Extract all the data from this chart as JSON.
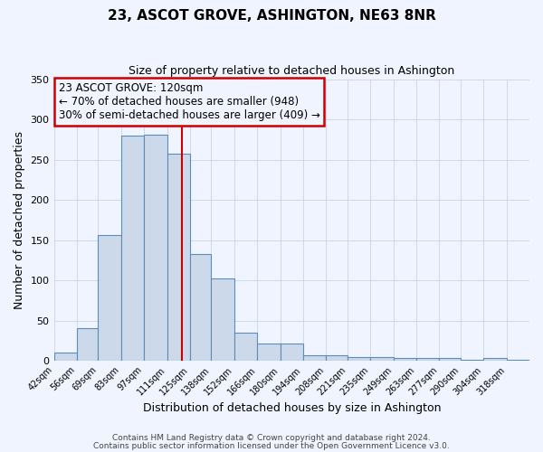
{
  "title": "23, ASCOT GROVE, ASHINGTON, NE63 8NR",
  "subtitle": "Size of property relative to detached houses in Ashington",
  "xlabel": "Distribution of detached houses by size in Ashington",
  "ylabel": "Number of detached properties",
  "bin_labels": [
    "42sqm",
    "56sqm",
    "69sqm",
    "83sqm",
    "97sqm",
    "111sqm",
    "125sqm",
    "138sqm",
    "152sqm",
    "166sqm",
    "180sqm",
    "194sqm",
    "208sqm",
    "221sqm",
    "235sqm",
    "249sqm",
    "263sqm",
    "277sqm",
    "290sqm",
    "304sqm",
    "318sqm"
  ],
  "bar_heights": [
    10,
    41,
    157,
    280,
    281,
    258,
    133,
    103,
    35,
    22,
    22,
    7,
    7,
    5,
    5,
    4,
    4,
    3,
    1,
    3,
    1
  ],
  "bin_edges": [
    42,
    56,
    69,
    83,
    97,
    111,
    125,
    138,
    152,
    166,
    180,
    194,
    208,
    221,
    235,
    249,
    263,
    277,
    290,
    304,
    318,
    332
  ],
  "bar_color": "#ccd9ea",
  "bar_edge_color": "#5b8db8",
  "vline_x": 120,
  "vline_color": "#cc0000",
  "annotation_line1": "23 ASCOT GROVE: 120sqm",
  "annotation_line2": "← 70% of detached houses are smaller (948)",
  "annotation_line3": "30% of semi-detached houses are larger (409) →",
  "annotation_box_edgecolor": "#cc0000",
  "ylim": [
    0,
    350
  ],
  "yticks": [
    0,
    50,
    100,
    150,
    200,
    250,
    300,
    350
  ],
  "footer1": "Contains HM Land Registry data © Crown copyright and database right 2024.",
  "footer2": "Contains public sector information licensed under the Open Government Licence v3.0.",
  "bg_color": "#f0f4ff",
  "grid_color": "#c8d4e8",
  "title_fontsize": 11,
  "subtitle_fontsize": 9,
  "annotation_fontsize": 8.5,
  "xlabel_fontsize": 9,
  "ylabel_fontsize": 9,
  "tick_fontsize": 7,
  "footer_fontsize": 6.5
}
